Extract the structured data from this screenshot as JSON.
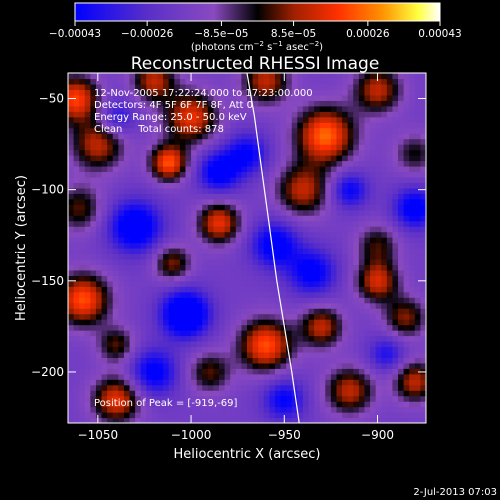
{
  "chart_data": {
    "type": "heatmap",
    "title": "Reconstructed RHESSI Image",
    "xlabel": "Heliocentric X (arcsec)",
    "ylabel": "Heliocentric Y (arcsec)",
    "xlim": [
      -1066,
      -874
    ],
    "ylim": [
      -228,
      -36
    ],
    "x_ticks": [
      -1050,
      -1000,
      -950,
      -900
    ],
    "x_tick_labels": [
      "−1050",
      "−1000",
      "−950",
      "−900"
    ],
    "y_ticks": [
      -200,
      -150,
      -100,
      -50
    ],
    "y_tick_labels": [
      "−200",
      "−150",
      "−100",
      "−50"
    ],
    "colorbar": {
      "range": [
        -0.00043,
        0.00043
      ],
      "ticks": [
        -0.00043,
        -0.00026,
        -8.5e-05,
        8.5e-05,
        0.00026,
        0.00043
      ],
      "tick_labels": [
        "−0.00043",
        "−0.00026",
        "−8.5e−05",
        "8.5e−05",
        "0.00026",
        "0.00043"
      ],
      "units_prefix": "(photons cm",
      "units_sup1": "−2",
      "units_mid": " s",
      "units_sup2": "−1",
      "units_mid2": " asec",
      "units_sup3": "−2",
      "units_suffix": ")",
      "colors": [
        "#0000ff",
        "#5a2fc8",
        "#8a4ac0",
        "#000000",
        "#a02000",
        "#ff3000",
        "#ff9000",
        "#ffff40",
        "#ffffff"
      ]
    },
    "annotations": [
      "12-Nov-2005 17:22:24.000 to 17:23:00.000",
      "Detectors: 4F 5F 6F 7F 8F, Att 0",
      "Energy Range: 25.0 - 50.0 keV",
      "Clean     Total counts: 878"
    ],
    "peak_label": "Position of Peak = [-919,-69]",
    "peak_position": [
      -919,
      -69
    ],
    "limb_curve": [
      [
        -970,
        -36
      ],
      [
        -966,
        -60
      ],
      [
        -962,
        -90
      ],
      [
        -958,
        -120
      ],
      [
        -954,
        -150
      ],
      [
        -950,
        -175
      ],
      [
        -946,
        -200
      ],
      [
        -942,
        -228
      ]
    ],
    "blobs": [
      {
        "x": -1062,
        "y": -50,
        "v": 0.00038,
        "s": 9
      },
      {
        "x": -1050,
        "y": -75,
        "v": 0.0003,
        "s": 10
      },
      {
        "x": -1060,
        "y": -110,
        "v": 0.00022,
        "s": 9
      },
      {
        "x": -1000,
        "y": -60,
        "v": 0.00035,
        "s": 10
      },
      {
        "x": -1020,
        "y": -40,
        "v": 0.0003,
        "s": 8
      },
      {
        "x": -1012,
        "y": -85,
        "v": 0.0004,
        "s": 7
      },
      {
        "x": -985,
        "y": -118,
        "v": 0.00035,
        "s": 8
      },
      {
        "x": -960,
        "y": -40,
        "v": 0.0003,
        "s": 9
      },
      {
        "x": -928,
        "y": -70,
        "v": 0.00043,
        "s": 11
      },
      {
        "x": -940,
        "y": -100,
        "v": 0.0003,
        "s": 10
      },
      {
        "x": -900,
        "y": -45,
        "v": 0.0003,
        "s": 9
      },
      {
        "x": -880,
        "y": -80,
        "v": 0.00018,
        "s": 8
      },
      {
        "x": -900,
        "y": -130,
        "v": 0.0002,
        "s": 8
      },
      {
        "x": -1058,
        "y": -160,
        "v": 0.0004,
        "s": 10
      },
      {
        "x": -1040,
        "y": -215,
        "v": 0.00035,
        "s": 9
      },
      {
        "x": -1040,
        "y": -185,
        "v": 0.00022,
        "s": 7
      },
      {
        "x": -1010,
        "y": -140,
        "v": 0.00025,
        "s": 7
      },
      {
        "x": -960,
        "y": -185,
        "v": 0.0004,
        "s": 10
      },
      {
        "x": -930,
        "y": -175,
        "v": 0.0003,
        "s": 8
      },
      {
        "x": -900,
        "y": -150,
        "v": 0.00032,
        "s": 8
      },
      {
        "x": -885,
        "y": -170,
        "v": 0.00025,
        "s": 8
      },
      {
        "x": -915,
        "y": -210,
        "v": 0.0003,
        "s": 9
      },
      {
        "x": -880,
        "y": -205,
        "v": 0.0003,
        "s": 8
      },
      {
        "x": -990,
        "y": -200,
        "v": 0.00022,
        "s": 8
      },
      {
        "x": -1003,
        "y": -168,
        "v": -0.00043,
        "s": 9
      },
      {
        "x": -1030,
        "y": -120,
        "v": -0.00035,
        "s": 10
      },
      {
        "x": -985,
        "y": -90,
        "v": -0.0003,
        "s": 8
      },
      {
        "x": -955,
        "y": -130,
        "v": -0.0003,
        "s": 9
      },
      {
        "x": -935,
        "y": -145,
        "v": -0.00028,
        "s": 9
      },
      {
        "x": -880,
        "y": -110,
        "v": -0.0003,
        "s": 8
      },
      {
        "x": -915,
        "y": -100,
        "v": -0.00025,
        "s": 7
      },
      {
        "x": -1020,
        "y": -200,
        "v": -0.00028,
        "s": 9
      },
      {
        "x": -950,
        "y": -215,
        "v": -0.00025,
        "s": 8
      },
      {
        "x": -1040,
        "y": -60,
        "v": -0.0002,
        "s": 7
      },
      {
        "x": -970,
        "y": -80,
        "v": -0.00025,
        "s": 8
      },
      {
        "x": -895,
        "y": -190,
        "v": -0.0002,
        "s": 7
      }
    ]
  },
  "footer": {
    "date": "2-Jul-2013 07:03"
  }
}
